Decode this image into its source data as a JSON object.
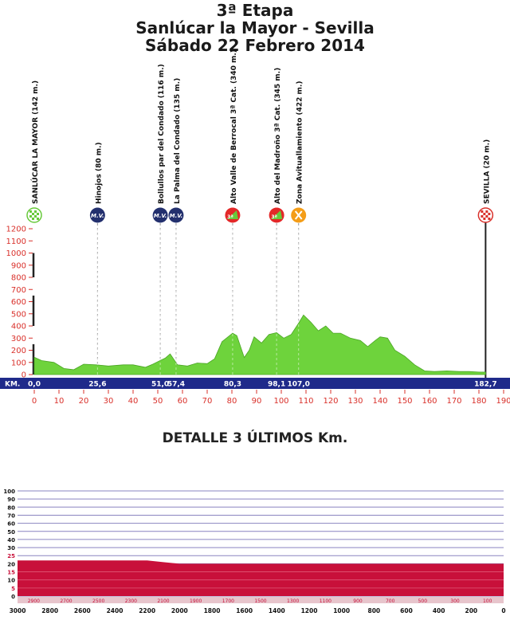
{
  "header": {
    "stage": "3ª Etapa",
    "route": "Sanlúcar la Mayor - Sevilla",
    "date": "Sábado 22 Febrero 2014"
  },
  "colors": {
    "profile_fill": "#6ed33c",
    "km_bar": "#1f2a8a",
    "axis_red": "#d9302a",
    "detail_fill": "#c8103a",
    "detail_grid": "#8a84c0"
  },
  "chart_data": [
    {
      "type": "area",
      "xlabel": "",
      "ylabel": "",
      "km_label": "KM.",
      "xlim": [
        0,
        190
      ],
      "ylim": [
        0,
        1200
      ],
      "y_ticks": [
        0,
        100,
        200,
        300,
        400,
        500,
        600,
        700,
        800,
        900,
        1000,
        1100,
        1200
      ],
      "x_ticks": [
        0,
        10,
        20,
        30,
        40,
        50,
        60,
        70,
        80,
        90,
        100,
        110,
        120,
        130,
        140,
        150,
        160,
        170,
        180,
        190
      ],
      "x": [
        0,
        3,
        8,
        12,
        16,
        20,
        25,
        30,
        36,
        40,
        45,
        48,
        51,
        53,
        55,
        58,
        62,
        66,
        70,
        73,
        76,
        80.3,
        82,
        85,
        87,
        89,
        92,
        95,
        98.1,
        101,
        104,
        107,
        109,
        112,
        115,
        118,
        121,
        124,
        128,
        132,
        135,
        138,
        140,
        143,
        146,
        150,
        154,
        158,
        162,
        167,
        172,
        176,
        180,
        182.7
      ],
      "elevation": [
        142,
        115,
        100,
        50,
        40,
        85,
        80,
        70,
        80,
        80,
        60,
        85,
        116,
        135,
        170,
        80,
        70,
        95,
        90,
        130,
        270,
        340,
        320,
        140,
        200,
        310,
        260,
        330,
        345,
        300,
        330,
        422,
        490,
        430,
        360,
        400,
        340,
        340,
        300,
        280,
        230,
        280,
        310,
        300,
        200,
        150,
        80,
        30,
        25,
        30,
        25,
        25,
        20,
        20
      ],
      "km_markers": [
        {
          "km": 0,
          "label": "0,0"
        },
        {
          "km": 25.6,
          "label": "25,6"
        },
        {
          "km": 51.0,
          "label": "51,0"
        },
        {
          "km": 57.4,
          "label": "57,4"
        },
        {
          "km": 80.3,
          "label": "80,3"
        },
        {
          "km": 98.1,
          "label": "98,1"
        },
        {
          "km": 107.0,
          "label": "107,0"
        },
        {
          "km": 182.7,
          "label": "182,7"
        }
      ],
      "points": [
        {
          "km": 0,
          "label": "SANLÚCAR LA MAYOR (142 m.)",
          "icon": "start-flag-icon",
          "icon_text": ""
        },
        {
          "km": 25.6,
          "label": "Hinojos (80 m.)",
          "icon": "meta-volante-icon",
          "icon_text": "M.V."
        },
        {
          "km": 51.0,
          "label": "Bollullos par del Condado (116 m.)",
          "icon": "meta-volante-icon",
          "icon_text": "M.V."
        },
        {
          "km": 57.4,
          "label": "La Palma del Condado (135 m.)",
          "icon": "meta-volante-icon",
          "icon_text": "M.V."
        },
        {
          "km": 80.3,
          "label": "Alto Valle de Berrocal 3ª Cat. (340 m.)",
          "icon": "mountain-pass-icon",
          "icon_text": "3ª"
        },
        {
          "km": 98.1,
          "label": "Alto del Madroño 3ª Cat. (345 m.)",
          "icon": "mountain-pass-icon",
          "icon_text": "3ª"
        },
        {
          "km": 107.0,
          "label": "Zona Avituallamiento (422 m.)",
          "icon": "feed-zone-icon",
          "icon_text": ""
        },
        {
          "km": 182.7,
          "label": "SEVILLA (20 m.)",
          "icon": "finish-flag-icon",
          "icon_text": ""
        }
      ]
    },
    {
      "type": "area",
      "title": "DETALLE 3 ÚLTIMOS Km.",
      "xlim": [
        3000,
        0
      ],
      "ylim": [
        0,
        100
      ],
      "y_ticks": [
        0,
        5,
        10,
        15,
        20,
        25,
        30,
        40,
        50,
        60,
        70,
        80,
        90,
        100
      ],
      "x_major_ticks": [
        3000,
        2800,
        2600,
        2400,
        2200,
        2000,
        1800,
        1600,
        1400,
        1200,
        1000,
        800,
        600,
        400,
        200,
        0
      ],
      "x_minor_ticks": [
        2900,
        2700,
        2500,
        2300,
        2100,
        1900,
        1700,
        1500,
        1300,
        1100,
        900,
        700,
        500,
        300,
        100
      ],
      "x": [
        3000,
        2800,
        2600,
        2400,
        2200,
        2100,
        2000,
        1800,
        1600,
        1400,
        1200,
        1000,
        800,
        600,
        400,
        200,
        0
      ],
      "elevation": [
        22,
        22,
        22,
        22,
        22,
        21,
        20,
        20,
        20,
        20,
        20,
        20,
        20,
        20,
        20,
        20,
        20
      ]
    }
  ]
}
